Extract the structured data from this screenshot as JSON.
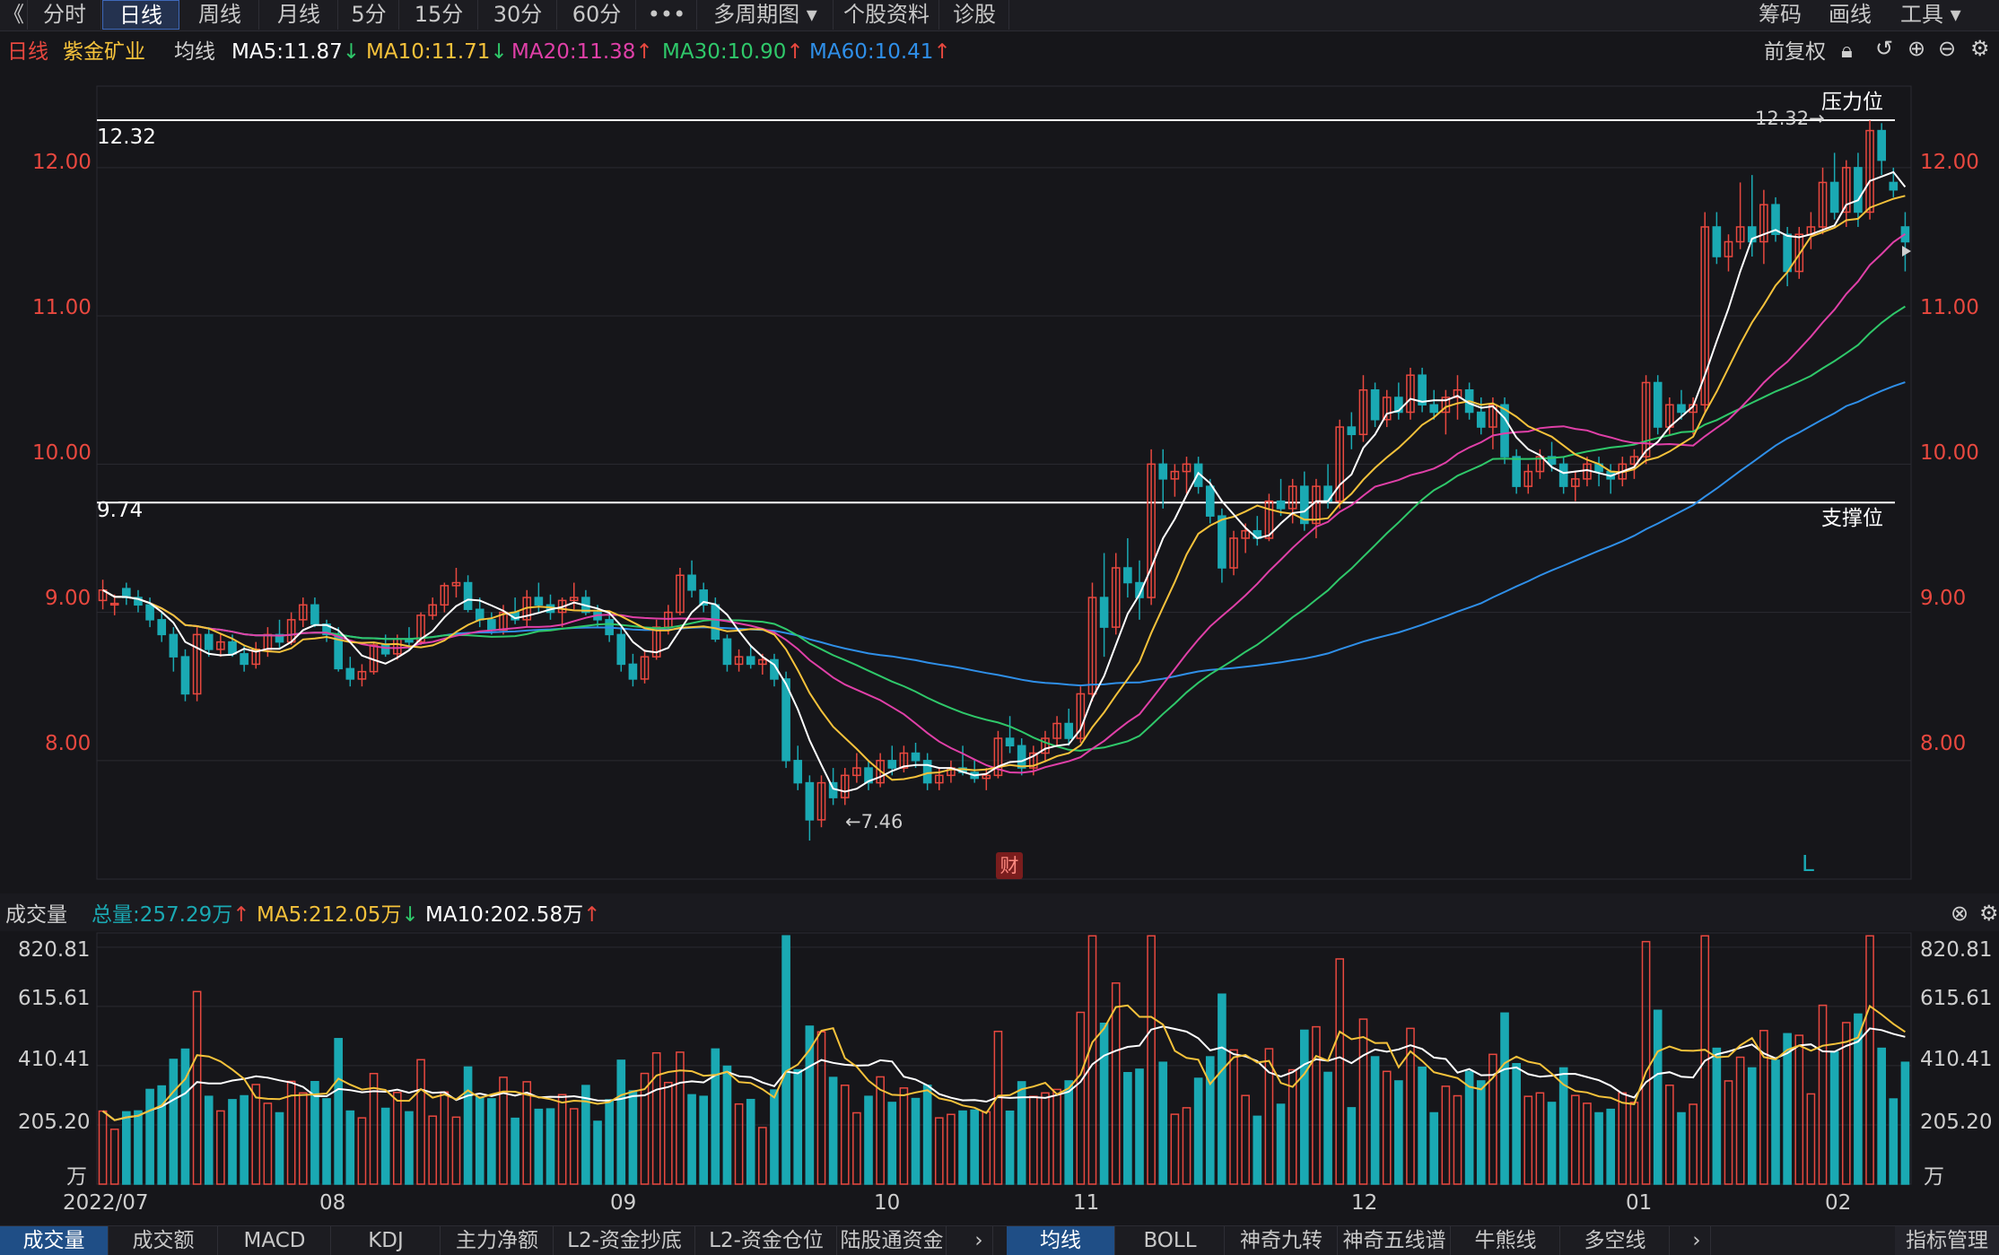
{
  "toolbar": {
    "back_icon": "《",
    "periods": [
      "分时",
      "日线",
      "周线",
      "月线",
      "5分",
      "15分",
      "30分",
      "60分",
      "•••",
      "多周期图 ▾",
      "个股资料",
      "诊股"
    ],
    "active_period": 1,
    "right_items": [
      "筹码",
      "画线",
      "工具 ▾"
    ]
  },
  "legend": {
    "period": "日线",
    "stock": "紫金矿业",
    "ma_label": "均线",
    "ma5": "MA5:11.87",
    "ma10": "MA10:11.71",
    "ma20": "MA20:11.38",
    "ma30": "MA30:10.90",
    "ma60": "MA60:10.41",
    "adjust": "前复权",
    "arrow_down": "↓",
    "arrow_up": "↑"
  },
  "colors": {
    "up": "#e8483f",
    "down": "#1aa9b3",
    "ma5": "#ffffff",
    "ma10": "#f5c23b",
    "ma20": "#e040a8",
    "ma30": "#2fc86a",
    "ma60": "#2f8fe8",
    "bg": "#16161a",
    "grid": "#2b2b31"
  },
  "annotations": {
    "pressure_label": "压力位",
    "support_label": "支撑位",
    "pressure_value": "12.32",
    "support_value": "9.74",
    "high_marker": "12.32→",
    "low_marker": "←7.46",
    "finance_marker": "财",
    "l_marker": "L"
  },
  "volume_legend": {
    "title": "成交量",
    "total": "总量:257.29万",
    "ma5": "MA5:212.05万",
    "ma10": "MA10:202.58万"
  },
  "chart_data": {
    "type": "candlestick",
    "price_axis": {
      "ticks": [
        "12.00",
        "11.00",
        "10.00",
        "9.00",
        "8.00"
      ],
      "range": [
        7.2,
        12.55
      ]
    },
    "volume_axis": {
      "ticks": [
        "820.81",
        "615.61",
        "410.41",
        "205.20"
      ],
      "unit": "万",
      "range": [
        0,
        870
      ]
    },
    "x_ticks": [
      "2022/07",
      "08",
      "09",
      "10",
      "11",
      "12",
      "01",
      "02"
    ],
    "pressure_line": 12.32,
    "support_line": 9.74,
    "ohlc_anchors": [
      [
        0,
        9.08,
        9.22,
        9.02,
        9.15
      ],
      [
        1,
        9.05,
        9.12,
        8.98,
        9.06
      ],
      [
        2,
        9.16,
        9.2,
        9.05,
        9.1
      ],
      [
        3,
        9.1,
        9.15,
        9.0,
        9.05
      ],
      [
        4,
        9.05,
        9.1,
        8.9,
        8.95
      ],
      [
        5,
        8.95,
        9.0,
        8.8,
        8.85
      ],
      [
        6,
        8.85,
        8.9,
        8.6,
        8.7
      ],
      [
        7,
        8.7,
        8.75,
        8.4,
        8.45
      ],
      [
        8,
        8.45,
        8.9,
        8.4,
        8.85
      ],
      [
        9,
        8.85,
        8.9,
        8.7,
        8.75
      ],
      [
        10,
        8.75,
        8.85,
        8.7,
        8.8
      ],
      [
        11,
        8.8,
        8.85,
        8.7,
        8.72
      ],
      [
        12,
        8.72,
        8.78,
        8.6,
        8.65
      ],
      [
        13,
        8.65,
        8.8,
        8.62,
        8.75
      ],
      [
        14,
        8.75,
        8.9,
        8.7,
        8.85
      ],
      [
        15,
        8.85,
        8.95,
        8.75,
        8.8
      ],
      [
        16,
        8.8,
        9.0,
        8.78,
        8.95
      ],
      [
        17,
        8.95,
        9.1,
        8.9,
        9.05
      ],
      [
        18,
        9.05,
        9.1,
        8.9,
        8.92
      ],
      [
        19,
        8.92,
        8.95,
        8.8,
        8.85
      ],
      [
        20,
        8.85,
        8.9,
        8.6,
        8.62
      ],
      [
        21,
        8.62,
        8.7,
        8.5,
        8.55
      ],
      [
        22,
        8.55,
        8.65,
        8.5,
        8.6
      ],
      [
        23,
        8.6,
        8.8,
        8.58,
        8.78
      ],
      [
        24,
        8.78,
        8.85,
        8.7,
        8.72
      ],
      [
        25,
        8.72,
        8.85,
        8.68,
        8.82
      ],
      [
        26,
        8.82,
        8.9,
        8.75,
        8.8
      ],
      [
        27,
        8.8,
        9.0,
        8.78,
        8.98
      ],
      [
        28,
        8.98,
        9.1,
        8.95,
        9.05
      ],
      [
        29,
        9.05,
        9.2,
        9.0,
        9.18
      ],
      [
        30,
        9.18,
        9.3,
        9.1,
        9.2
      ],
      [
        31,
        9.2,
        9.25,
        9.0,
        9.02
      ],
      [
        32,
        9.02,
        9.1,
        8.9,
        8.95
      ],
      [
        33,
        8.95,
        9.0,
        8.85,
        8.88
      ],
      [
        34,
        8.88,
        9.05,
        8.85,
        9.0
      ],
      [
        35,
        9.0,
        9.1,
        8.92,
        8.95
      ],
      [
        36,
        8.95,
        9.15,
        8.9,
        9.1
      ],
      [
        37,
        9.1,
        9.2,
        9.0,
        9.05
      ],
      [
        38,
        9.05,
        9.12,
        8.95,
        9.0
      ],
      [
        39,
        9.0,
        9.1,
        8.9,
        9.08
      ],
      [
        40,
        9.08,
        9.2,
        9.02,
        9.1
      ],
      [
        41,
        9.1,
        9.15,
        8.98,
        9.0
      ],
      [
        42,
        9.0,
        9.05,
        8.9,
        8.95
      ],
      [
        43,
        8.95,
        9.0,
        8.8,
        8.85
      ],
      [
        44,
        8.85,
        8.9,
        8.6,
        8.65
      ],
      [
        45,
        8.65,
        8.72,
        8.5,
        8.55
      ],
      [
        46,
        8.55,
        8.75,
        8.52,
        8.7
      ],
      [
        47,
        8.7,
        8.95,
        8.68,
        8.9
      ],
      [
        48,
        8.9,
        9.05,
        8.85,
        9.0
      ],
      [
        49,
        9.0,
        9.3,
        8.98,
        9.25
      ],
      [
        50,
        9.25,
        9.35,
        9.1,
        9.15
      ],
      [
        51,
        9.15,
        9.2,
        9.0,
        9.05
      ],
      [
        52,
        9.05,
        9.1,
        8.8,
        8.82
      ],
      [
        53,
        8.82,
        8.85,
        8.6,
        8.65
      ],
      [
        54,
        8.65,
        8.75,
        8.6,
        8.7
      ],
      [
        55,
        8.7,
        8.78,
        8.62,
        8.65
      ],
      [
        56,
        8.65,
        8.72,
        8.58,
        8.68
      ],
      [
        57,
        8.68,
        8.72,
        8.5,
        8.55
      ],
      [
        58,
        8.55,
        8.6,
        7.95,
        8.0
      ],
      [
        59,
        8.0,
        8.1,
        7.8,
        7.85
      ],
      [
        60,
        7.85,
        7.9,
        7.46,
        7.6
      ],
      [
        61,
        7.6,
        7.9,
        7.55,
        7.85
      ],
      [
        62,
        7.85,
        7.95,
        7.7,
        7.75
      ],
      [
        63,
        7.75,
        7.95,
        7.7,
        7.9
      ],
      [
        64,
        7.9,
        8.05,
        7.85,
        7.95
      ],
      [
        65,
        7.95,
        8.0,
        7.8,
        7.85
      ],
      [
        66,
        7.85,
        8.05,
        7.82,
        8.0
      ],
      [
        67,
        8.0,
        8.1,
        7.9,
        7.95
      ],
      [
        68,
        7.95,
        8.1,
        7.92,
        8.05
      ],
      [
        69,
        8.05,
        8.12,
        7.95,
        8.0
      ],
      [
        70,
        8.0,
        8.05,
        7.8,
        7.85
      ],
      [
        71,
        7.85,
        7.95,
        7.8,
        7.9
      ],
      [
        72,
        7.9,
        8.0,
        7.85,
        7.95
      ],
      [
        73,
        7.95,
        8.1,
        7.9,
        7.92
      ],
      [
        74,
        7.92,
        8.0,
        7.85,
        7.88
      ],
      [
        75,
        7.88,
        7.95,
        7.8,
        7.9
      ],
      [
        76,
        7.9,
        8.2,
        7.88,
        8.15
      ],
      [
        77,
        8.15,
        8.3,
        8.05,
        8.1
      ],
      [
        78,
        8.1,
        8.15,
        7.9,
        7.95
      ],
      [
        79,
        7.95,
        8.1,
        7.9,
        8.05
      ],
      [
        80,
        8.05,
        8.2,
        8.0,
        8.15
      ],
      [
        81,
        8.15,
        8.3,
        8.1,
        8.25
      ],
      [
        82,
        8.25,
        8.35,
        8.1,
        8.15
      ],
      [
        83,
        8.15,
        8.5,
        8.12,
        8.45
      ],
      [
        84,
        8.45,
        9.2,
        8.4,
        9.1
      ],
      [
        85,
        9.1,
        9.4,
        8.7,
        8.9
      ],
      [
        86,
        8.9,
        9.4,
        8.85,
        9.3
      ],
      [
        87,
        9.3,
        9.5,
        9.1,
        9.2
      ],
      [
        88,
        9.2,
        9.35,
        8.95,
        9.1
      ],
      [
        89,
        9.1,
        10.1,
        9.05,
        10.0
      ],
      [
        90,
        10.0,
        10.1,
        9.7,
        9.9
      ],
      [
        91,
        9.9,
        10.0,
        9.78,
        9.95
      ],
      [
        92,
        9.95,
        10.05,
        9.8,
        10.0
      ],
      [
        93,
        10.0,
        10.05,
        9.8,
        9.85
      ],
      [
        94,
        9.85,
        9.9,
        9.6,
        9.65
      ],
      [
        95,
        9.65,
        9.7,
        9.2,
        9.3
      ],
      [
        96,
        9.3,
        9.55,
        9.25,
        9.5
      ],
      [
        97,
        9.5,
        9.6,
        9.4,
        9.55
      ],
      [
        98,
        9.55,
        9.65,
        9.45,
        9.5
      ],
      [
        99,
        9.5,
        9.8,
        9.48,
        9.75
      ],
      [
        100,
        9.75,
        9.9,
        9.65,
        9.7
      ],
      [
        101,
        9.7,
        9.9,
        9.6,
        9.85
      ],
      [
        102,
        9.85,
        9.95,
        9.55,
        9.6
      ],
      [
        103,
        9.6,
        9.9,
        9.5,
        9.85
      ],
      [
        104,
        9.85,
        10.0,
        9.7,
        9.75
      ],
      [
        105,
        9.75,
        10.3,
        9.7,
        10.25
      ],
      [
        106,
        10.25,
        10.35,
        10.1,
        10.2
      ],
      [
        107,
        10.2,
        10.6,
        10.15,
        10.5
      ],
      [
        108,
        10.5,
        10.55,
        10.25,
        10.3
      ],
      [
        109,
        10.3,
        10.5,
        10.25,
        10.45
      ],
      [
        110,
        10.45,
        10.55,
        10.3,
        10.35
      ],
      [
        111,
        10.35,
        10.65,
        10.3,
        10.6
      ],
      [
        112,
        10.6,
        10.65,
        10.35,
        10.4
      ],
      [
        113,
        10.4,
        10.5,
        10.3,
        10.35
      ],
      [
        114,
        10.35,
        10.5,
        10.2,
        10.45
      ],
      [
        115,
        10.45,
        10.6,
        10.3,
        10.5
      ],
      [
        116,
        10.5,
        10.55,
        10.3,
        10.35
      ],
      [
        117,
        10.35,
        10.45,
        10.2,
        10.25
      ],
      [
        118,
        10.25,
        10.45,
        10.1,
        10.4
      ],
      [
        119,
        10.4,
        10.45,
        10.0,
        10.05
      ],
      [
        120,
        10.05,
        10.1,
        9.8,
        9.85
      ],
      [
        121,
        9.85,
        10.0,
        9.8,
        9.95
      ],
      [
        122,
        9.95,
        10.1,
        9.9,
        10.05
      ],
      [
        123,
        10.05,
        10.15,
        9.95,
        10.0
      ],
      [
        124,
        10.0,
        10.05,
        9.8,
        9.85
      ],
      [
        125,
        9.85,
        9.95,
        9.75,
        9.9
      ],
      [
        126,
        9.9,
        10.05,
        9.85,
        10.0
      ],
      [
        127,
        10.0,
        10.05,
        9.85,
        9.95
      ],
      [
        128,
        9.95,
        10.0,
        9.8,
        9.9
      ],
      [
        129,
        9.9,
        10.05,
        9.85,
        10.0
      ],
      [
        130,
        10.0,
        10.1,
        9.9,
        10.05
      ],
      [
        131,
        10.05,
        10.6,
        10.0,
        10.55
      ],
      [
        132,
        10.55,
        10.6,
        10.2,
        10.25
      ],
      [
        133,
        10.25,
        10.45,
        10.2,
        10.4
      ],
      [
        134,
        10.4,
        10.5,
        10.3,
        10.35
      ],
      [
        135,
        10.35,
        10.45,
        10.2,
        10.4
      ],
      [
        136,
        10.4,
        11.7,
        10.35,
        11.6
      ],
      [
        137,
        11.6,
        11.7,
        11.35,
        11.4
      ],
      [
        138,
        11.4,
        11.55,
        11.3,
        11.5
      ],
      [
        139,
        11.5,
        11.9,
        11.45,
        11.6
      ],
      [
        140,
        11.6,
        11.95,
        11.4,
        11.5
      ],
      [
        141,
        11.5,
        11.85,
        11.35,
        11.75
      ],
      [
        142,
        11.75,
        11.8,
        11.5,
        11.55
      ],
      [
        143,
        11.55,
        11.6,
        11.2,
        11.3
      ],
      [
        144,
        11.3,
        11.6,
        11.25,
        11.55
      ],
      [
        145,
        11.55,
        11.7,
        11.45,
        11.6
      ],
      [
        146,
        11.6,
        12.0,
        11.55,
        11.9
      ],
      [
        147,
        11.9,
        12.1,
        11.65,
        11.7
      ],
      [
        148,
        11.7,
        12.05,
        11.6,
        12.0
      ],
      [
        149,
        12.0,
        12.1,
        11.6,
        11.7
      ],
      [
        150,
        11.7,
        12.32,
        11.65,
        12.25
      ],
      [
        151,
        12.25,
        12.3,
        11.95,
        12.05
      ],
      [
        152,
        11.9,
        12.0,
        11.8,
        11.85
      ],
      [
        153,
        11.6,
        11.7,
        11.3,
        11.5
      ]
    ],
    "ma_end_values": {
      "ma5": 11.87,
      "ma10": 11.71,
      "ma20": 11.38,
      "ma30": 10.9,
      "ma60": 10.41
    }
  },
  "bottom_tabs": {
    "left": [
      "成交量",
      "成交额",
      "MACD",
      "KDJ",
      "主力净额",
      "L2-资金抄底",
      "L2-资金仓位",
      "陆股通资金"
    ],
    "right": [
      "均线",
      "BOLL",
      "神奇九转",
      "神奇五线谱",
      "牛熊线",
      "多空线"
    ],
    "more": "›",
    "far_right": "指标管理"
  }
}
